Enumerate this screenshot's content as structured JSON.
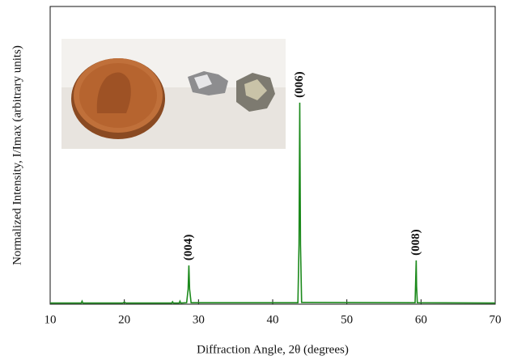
{
  "chart_data": {
    "type": "line",
    "xlabel": "Diffraction Angle, 2θ (degrees)",
    "ylabel": "Normalized Intensity, I/Imax (arbitrary units)",
    "x": [
      10,
      14.2,
      14.3,
      14.4,
      19.8,
      20,
      20.2,
      26.4,
      26.5,
      26.6,
      27.4,
      27.5,
      27.6,
      28.4,
      28.6,
      28.7,
      28.8,
      29.0,
      43.4,
      43.55,
      43.65,
      43.75,
      43.9,
      59.2,
      59.35,
      59.4,
      59.5,
      70
    ],
    "series": [
      {
        "color": "#1c8a1c",
        "values": [
          0.004,
          0.004,
          0.01,
          0.004,
          0.004,
          0.007,
          0.004,
          0.004,
          0.008,
          0.004,
          0.004,
          0.01,
          0.004,
          0.005,
          0.05,
          0.13,
          0.05,
          0.005,
          0.005,
          0.2,
          0.677,
          0.2,
          0.006,
          0.005,
          0.147,
          0.06,
          0.005,
          0.004
        ]
      }
    ],
    "xlim": [
      10,
      70
    ],
    "xticks": [
      10,
      20,
      30,
      40,
      50,
      60,
      70
    ],
    "ylim": [
      0,
      1
    ],
    "annotations": [
      {
        "text": "(004)",
        "x": 28.7,
        "y": 0.13
      },
      {
        "text": "(006)",
        "x": 43.65,
        "y": 0.677
      },
      {
        "text": "(008)",
        "x": 59.35,
        "y": 0.147
      }
    ]
  }
}
